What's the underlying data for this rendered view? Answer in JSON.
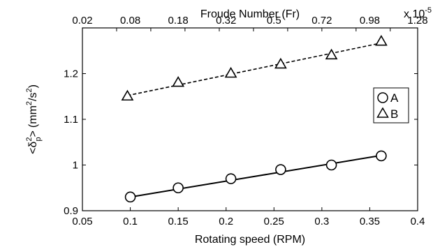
{
  "chart_data": {
    "type": "line",
    "xlabel": "Rotating speed (RPM)",
    "ylabel": "<δ_p²> (mm²/s²)",
    "ylabel_parts": {
      "open": "<",
      "symbol": "δ",
      "sup": "2",
      "sub": "p",
      "close": ">",
      "unit": "(mm",
      "unit_sup": "2",
      "unit_mid": "/s",
      "unit_sup2": "2",
      "unit_close": ")"
    },
    "xlim": [
      0.05,
      0.4
    ],
    "ylim": [
      0.9,
      1.3
    ],
    "x_ticks": [
      0.05,
      0.1,
      0.15,
      0.2,
      0.25,
      0.3,
      0.35,
      0.4
    ],
    "x_tick_labels": [
      "0.05",
      "0.1",
      "0.15",
      "0.2",
      "0.25",
      "0.3",
      "0.35",
      "0.4"
    ],
    "y_ticks": [
      0.9,
      1.0,
      1.1,
      1.2
    ],
    "y_tick_labels": [
      "0.9",
      "1",
      "1.1",
      "1.2"
    ],
    "top_axis": {
      "label": "Froude Number (Fr)",
      "multiplier": "x 10",
      "multiplier_exp": "-5",
      "ticks": [
        0.05,
        0.0857,
        0.1214,
        0.1571,
        0.1929,
        0.2286,
        0.2643,
        0.3,
        0.3357,
        0.3714,
        0.4
      ],
      "tick_labels": [
        "0.02",
        "0.08",
        "0.18",
        "0.32",
        "0.5",
        "0.72",
        "0.98",
        "1.28"
      ],
      "label_positions": [
        0.05,
        0.1,
        0.15,
        0.2,
        0.25,
        0.3,
        0.35,
        0.4
      ]
    },
    "grid": false,
    "legend_position": "right",
    "series": [
      {
        "name": "A",
        "marker": "circle",
        "line": "solid",
        "x": [
          0.1,
          0.15,
          0.205,
          0.257,
          0.31,
          0.362
        ],
        "y": [
          0.93,
          0.95,
          0.97,
          0.99,
          1.0,
          1.02
        ],
        "fit": [
          [
            0.1,
            0.93
          ],
          [
            0.362,
            1.021
          ]
        ]
      },
      {
        "name": "B",
        "marker": "triangle",
        "line": "dashed",
        "x": [
          0.097,
          0.15,
          0.205,
          0.257,
          0.31,
          0.362
        ],
        "y": [
          1.15,
          1.18,
          1.2,
          1.22,
          1.24,
          1.27
        ],
        "fit": [
          [
            0.097,
            1.152
          ],
          [
            0.362,
            1.267
          ]
        ]
      }
    ]
  }
}
